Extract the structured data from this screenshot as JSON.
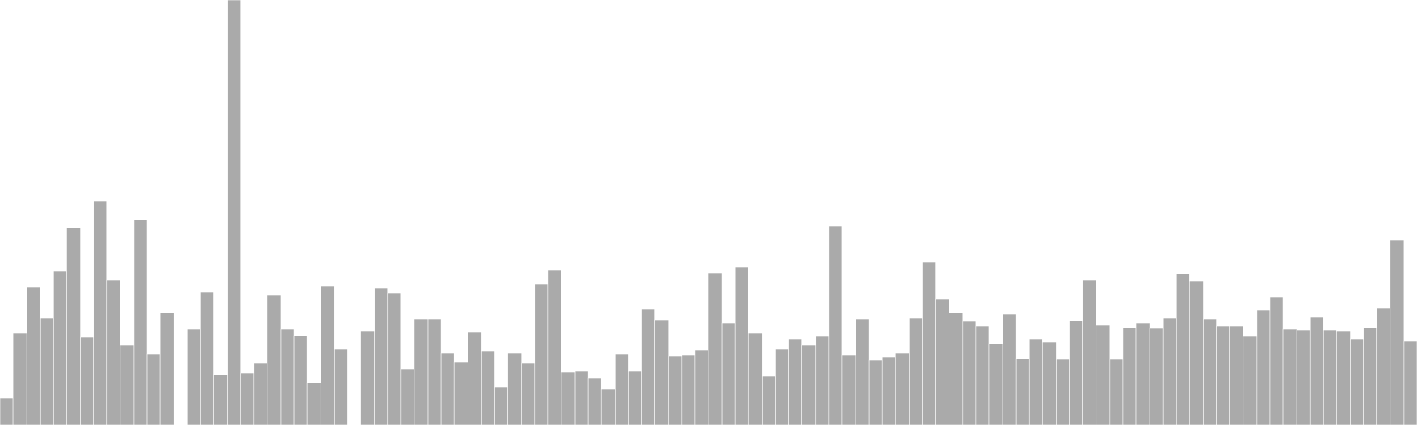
{
  "chart_data": {
    "type": "bar",
    "title": "",
    "xlabel": "",
    "ylabel": "",
    "ylim": [
      0,
      480
    ],
    "grid": false,
    "legend": "none",
    "bar_color": "#aaaaaa",
    "bar_edge_color": "#ffffff",
    "x": [
      0,
      1,
      2,
      3,
      4,
      5,
      6,
      7,
      8,
      9,
      10,
      11,
      12,
      13,
      14,
      15,
      16,
      17,
      18,
      19,
      20,
      21,
      22,
      23,
      24,
      25,
      26,
      27,
      28,
      29,
      30,
      31,
      32,
      33,
      34,
      35,
      36,
      37,
      38,
      39,
      40,
      41,
      42,
      43,
      44,
      45,
      46,
      47,
      48,
      49,
      50,
      51,
      52,
      53,
      54,
      55,
      56,
      57,
      58,
      59,
      60,
      61,
      62,
      63,
      64,
      65,
      66,
      67,
      68,
      69,
      70,
      71,
      72,
      73,
      74,
      75,
      76,
      77,
      78,
      79,
      80,
      81,
      82,
      83,
      84,
      85,
      86,
      87,
      88,
      89,
      90,
      91,
      92,
      93,
      94,
      95,
      96,
      97,
      98,
      99,
      100,
      101,
      102,
      103,
      104,
      105
    ],
    "values": [
      30,
      104,
      156,
      121,
      174,
      223,
      99,
      253,
      164,
      90,
      232,
      80,
      127,
      null,
      108,
      150,
      57,
      480,
      59,
      70,
      147,
      108,
      101,
      48,
      157,
      86,
      null,
      106,
      155,
      149,
      63,
      120,
      120,
      81,
      71,
      105,
      84,
      43,
      81,
      70,
      159,
      175,
      60,
      61,
      53,
      41,
      80,
      61,
      131,
      119,
      78,
      79,
      85,
      172,
      115,
      178,
      104,
      55,
      86,
      97,
      90,
      100,
      225,
      79,
      120,
      73,
      77,
      81,
      121,
      184,
      142,
      127,
      117,
      112,
      92,
      125,
      75,
      97,
      94,
      74,
      118,
      164,
      113,
      74,
      110,
      115,
      109,
      121,
      171,
      163,
      120,
      112,
      112,
      100,
      130,
      145,
      108,
      107,
      122,
      107,
      106,
      97,
      110,
      132,
      209,
      95
    ]
  }
}
